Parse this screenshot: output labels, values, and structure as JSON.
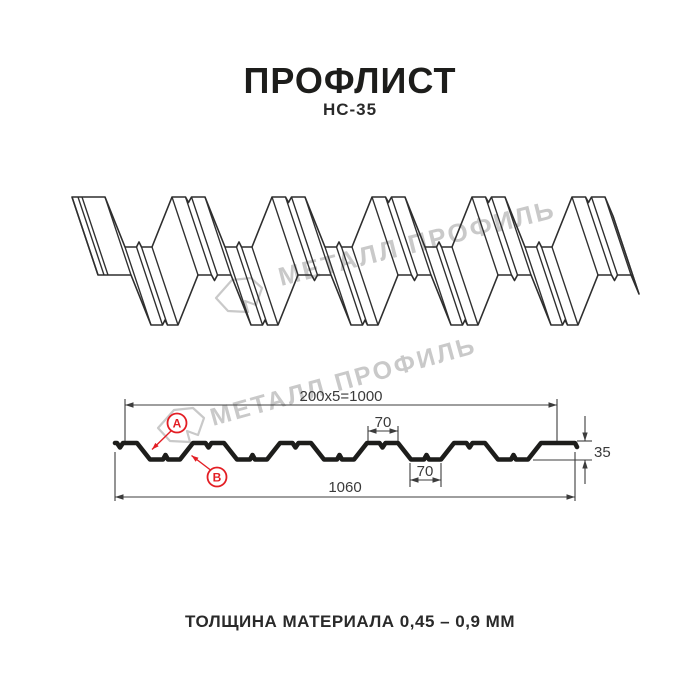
{
  "title": "ПРОФЛИСТ",
  "subtitle": "НС-35",
  "caption": "ТОЛЩИНА МАТЕРИАЛА 0,45 – 0,9 ММ",
  "watermark": {
    "text": "МЕТАЛЛ ПРОФИЛЬ",
    "logo": "metal-profil-logo"
  },
  "dimensions": {
    "coverage_width": "200x5=1000",
    "crest_width": "70",
    "valley_width": "70",
    "profile_height": "35",
    "overall_width": "1060"
  },
  "labels": {
    "a": "A",
    "b": "B"
  },
  "colors": {
    "line": "#1d1d1b",
    "thin_line": "#3c3c3c",
    "sketch_line": "#2e2e2e",
    "watermark_gray": "#c9c9c9",
    "accent_red": "#e31e24"
  }
}
